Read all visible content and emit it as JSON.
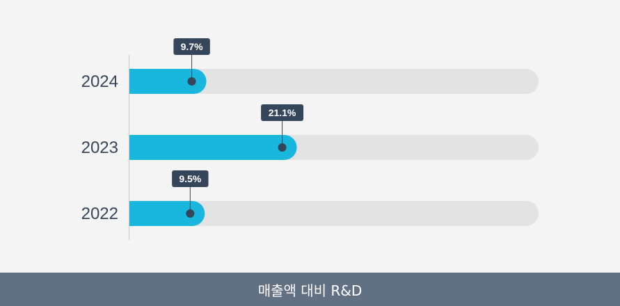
{
  "chart_data": {
    "type": "bar",
    "orientation": "horizontal",
    "categories": [
      "2024",
      "2023",
      "2022"
    ],
    "values": [
      9.7,
      21.1,
      9.5
    ],
    "value_labels": [
      "9.7%",
      "21.1%",
      "9.5%"
    ],
    "unit": "%",
    "xlim": [
      0,
      50
    ],
    "title": "",
    "xlabel": "",
    "ylabel": ""
  },
  "footer": {
    "caption": "매출액 대비 R&D"
  },
  "colors": {
    "bar": "#19b6dd",
    "track": "#e3e3e3",
    "marker": "#36465a",
    "label_bg": "#36465a",
    "label_text": "#ffffff",
    "axis": "#c9c9c9",
    "category_text": "#394659",
    "footer_bg": "#627083"
  }
}
